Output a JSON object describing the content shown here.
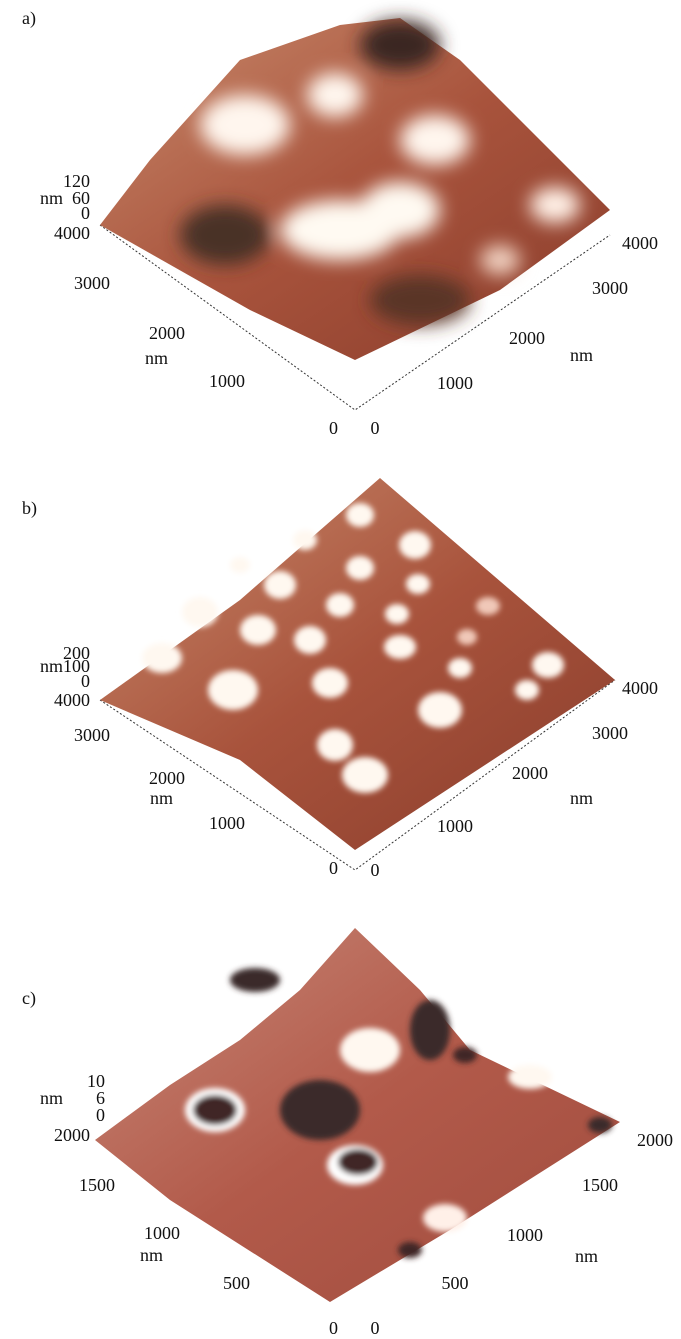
{
  "panels": [
    {
      "label": "a)",
      "z_unit": "nm",
      "z_ticks": [
        "120",
        "60",
        "0"
      ],
      "left_axis": {
        "unit": "nm",
        "ticks": [
          "4000",
          "3000",
          "2000",
          "1000",
          "0"
        ]
      },
      "right_axis": {
        "unit": "nm",
        "ticks": [
          "4000",
          "3000",
          "2000",
          "1000",
          "0"
        ]
      }
    },
    {
      "label": "b)",
      "z_unit": "nm",
      "z_ticks": [
        "200",
        "100",
        "0"
      ],
      "left_axis": {
        "unit": "nm",
        "ticks": [
          "4000",
          "3000",
          "2000",
          "1000",
          "0"
        ]
      },
      "right_axis": {
        "unit": "nm",
        "ticks": [
          "4000",
          "3000",
          "2000",
          "1000",
          "0"
        ]
      }
    },
    {
      "label": "c)",
      "z_unit": "nm",
      "z_ticks": [
        "10",
        "6",
        "0"
      ],
      "left_axis": {
        "unit": "nm",
        "ticks": [
          "2000",
          "1500",
          "1000",
          "500",
          "0"
        ]
      },
      "right_axis": {
        "unit": "nm",
        "ticks": [
          "2000",
          "1500",
          "1000",
          "500",
          "0"
        ]
      }
    }
  ]
}
